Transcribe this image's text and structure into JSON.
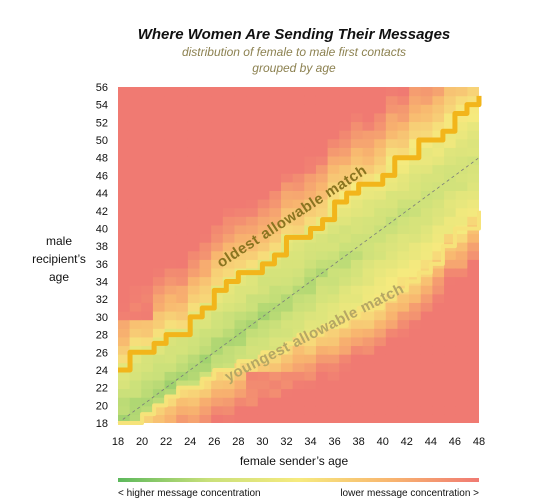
{
  "chart_data": {
    "type": "heatmap",
    "title": "Where Women Are Sending Their Messages",
    "subtitle_line1": "distribution of female to male first contacts",
    "subtitle_line2": "grouped by age",
    "xlabel": "female sender’s age",
    "ylabel_lines": [
      "male",
      "recipient’s",
      "age"
    ],
    "x_range": [
      18,
      48
    ],
    "y_range": [
      18,
      56
    ],
    "x_ticks": [
      18,
      20,
      22,
      24,
      26,
      28,
      30,
      32,
      34,
      36,
      38,
      40,
      42,
      44,
      46,
      48
    ],
    "y_ticks": [
      18,
      20,
      22,
      24,
      26,
      28,
      30,
      32,
      34,
      36,
      38,
      40,
      42,
      44,
      46,
      48,
      50,
      52,
      54,
      56
    ],
    "oldest_allowable": {
      "label": "oldest allowable match",
      "x": [
        18,
        19,
        20,
        21,
        22,
        23,
        24,
        25,
        26,
        27,
        28,
        29,
        30,
        31,
        32,
        33,
        34,
        35,
        36,
        37,
        38,
        39,
        40,
        41,
        42,
        43,
        44,
        45,
        46,
        47,
        48
      ],
      "y": [
        24,
        26,
        26,
        27,
        28,
        28,
        30,
        31,
        33,
        34,
        35,
        35,
        36,
        37,
        39,
        39,
        40,
        41,
        43,
        44,
        45,
        45,
        46,
        48,
        48,
        50,
        50,
        51,
        53,
        54,
        55
      ]
    },
    "youngest_allowable": {
      "label": "youngest allowable match",
      "x": [
        18,
        19,
        20,
        21,
        22,
        23,
        24,
        25,
        26,
        27,
        28,
        29,
        30,
        31,
        32,
        33,
        34,
        35,
        36,
        37,
        38,
        39,
        40,
        41,
        42,
        43,
        44,
        45,
        46,
        47,
        48
      ],
      "y": [
        18,
        18,
        19,
        20,
        21,
        22,
        22,
        23,
        24,
        24,
        25,
        25,
        26,
        26,
        27,
        28,
        28,
        29,
        29,
        30,
        31,
        31,
        32,
        33,
        34,
        35,
        36,
        38,
        40,
        40,
        42
      ]
    },
    "legend": {
      "low_label": "< higher message concentration",
      "high_label": "lower message concentration >",
      "colors": [
        "#5cb85c",
        "#c9e07a",
        "#f6ea7e",
        "#f8b66f",
        "#f07a72"
      ]
    }
  }
}
